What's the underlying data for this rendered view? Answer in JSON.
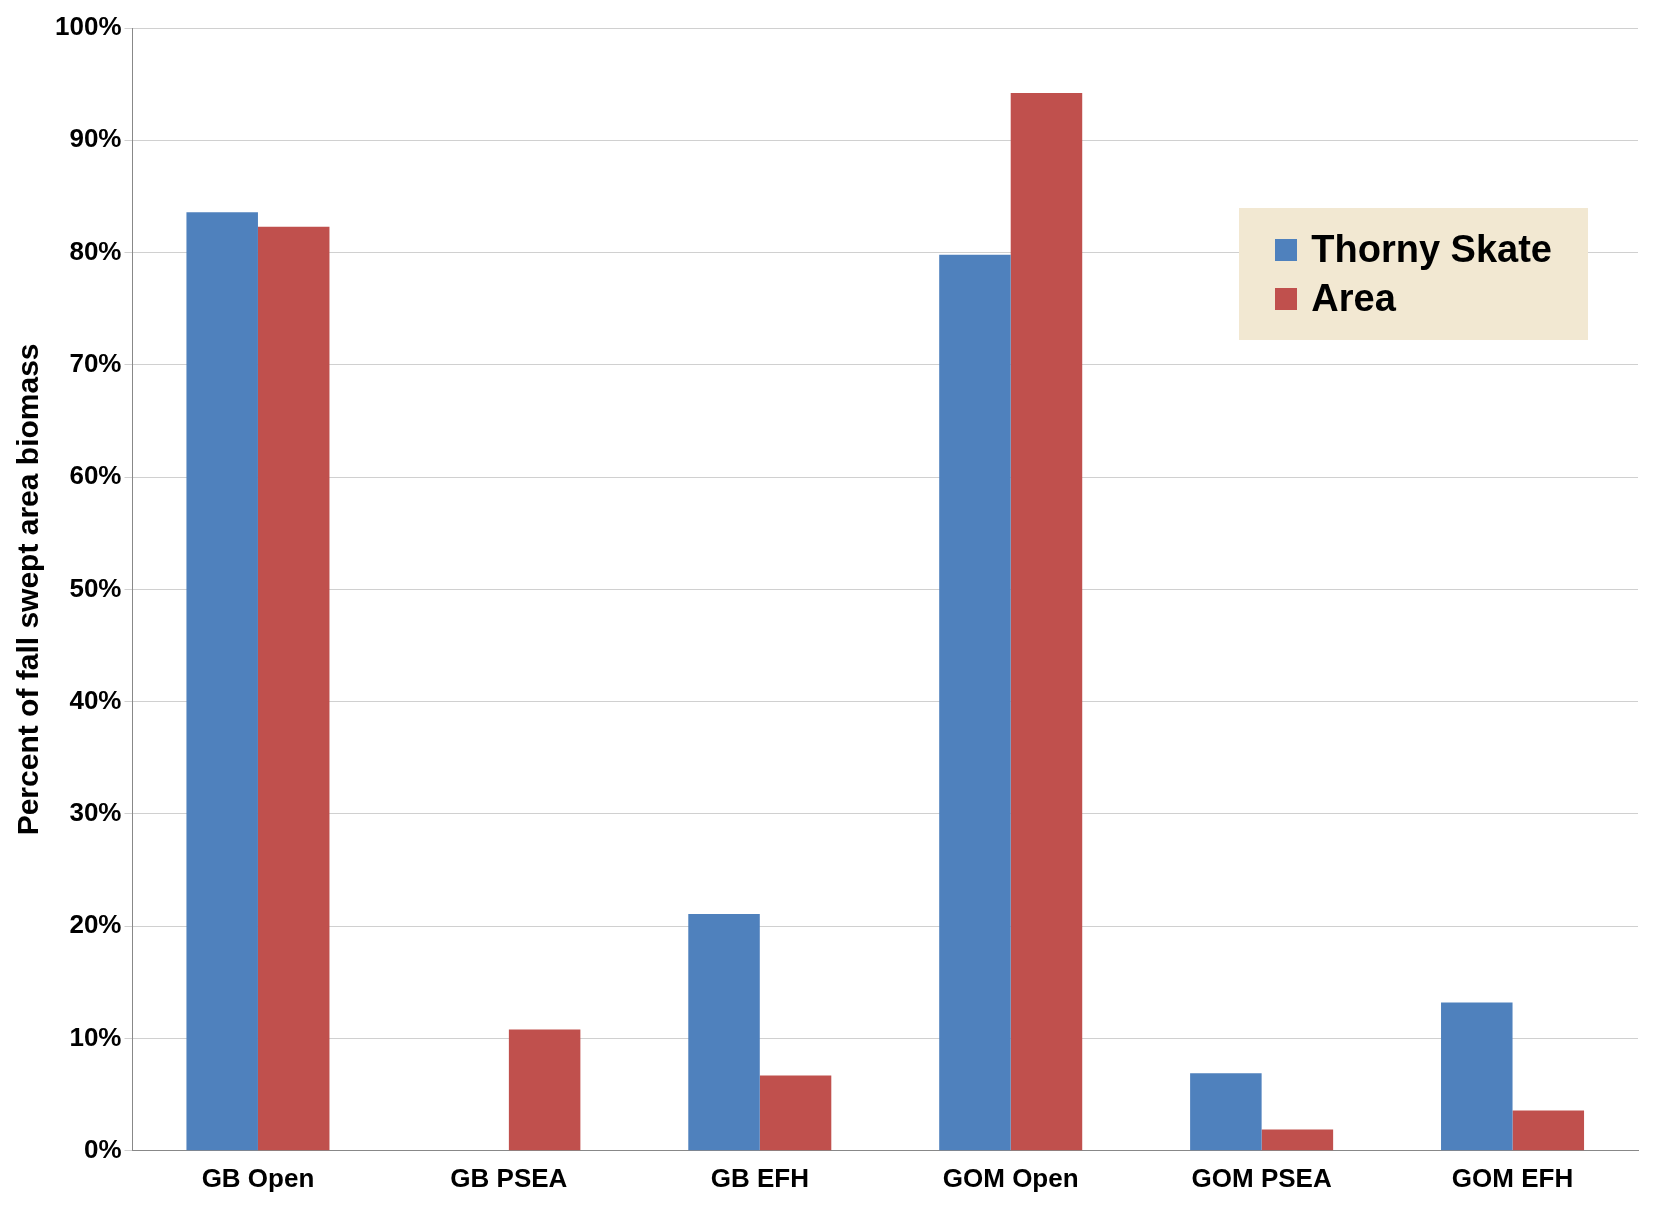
{
  "chart_data": {
    "type": "bar",
    "ylabel": "Percent of fall swept area biomass",
    "categories": [
      "GB Open",
      "GB PSEA",
      "GB EFH",
      "GOM Open",
      "GOM PSEA",
      "GOM EFH"
    ],
    "series": [
      {
        "name": "Thorny Skate",
        "color": "#4f81bd",
        "values": [
          83.6,
          0,
          21.1,
          79.8,
          6.9,
          13.2
        ]
      },
      {
        "name": "Area",
        "color": "#c0504d",
        "values": [
          82.3,
          10.8,
          6.7,
          94.2,
          1.9,
          3.6
        ]
      }
    ],
    "ylim": [
      0,
      100
    ],
    "yticks": [
      {
        "value": 0,
        "label": "0%"
      },
      {
        "value": 10,
        "label": "10%"
      },
      {
        "value": 20,
        "label": "20%"
      },
      {
        "value": 30,
        "label": "30%"
      },
      {
        "value": 40,
        "label": "40%"
      },
      {
        "value": 50,
        "label": "50%"
      },
      {
        "value": 60,
        "label": "60%"
      },
      {
        "value": 70,
        "label": "70%"
      },
      {
        "value": 80,
        "label": "80%"
      },
      {
        "value": 90,
        "label": "90%"
      },
      {
        "value": 100,
        "label": "100%"
      }
    ],
    "grid": "y",
    "legend": "top right"
  }
}
